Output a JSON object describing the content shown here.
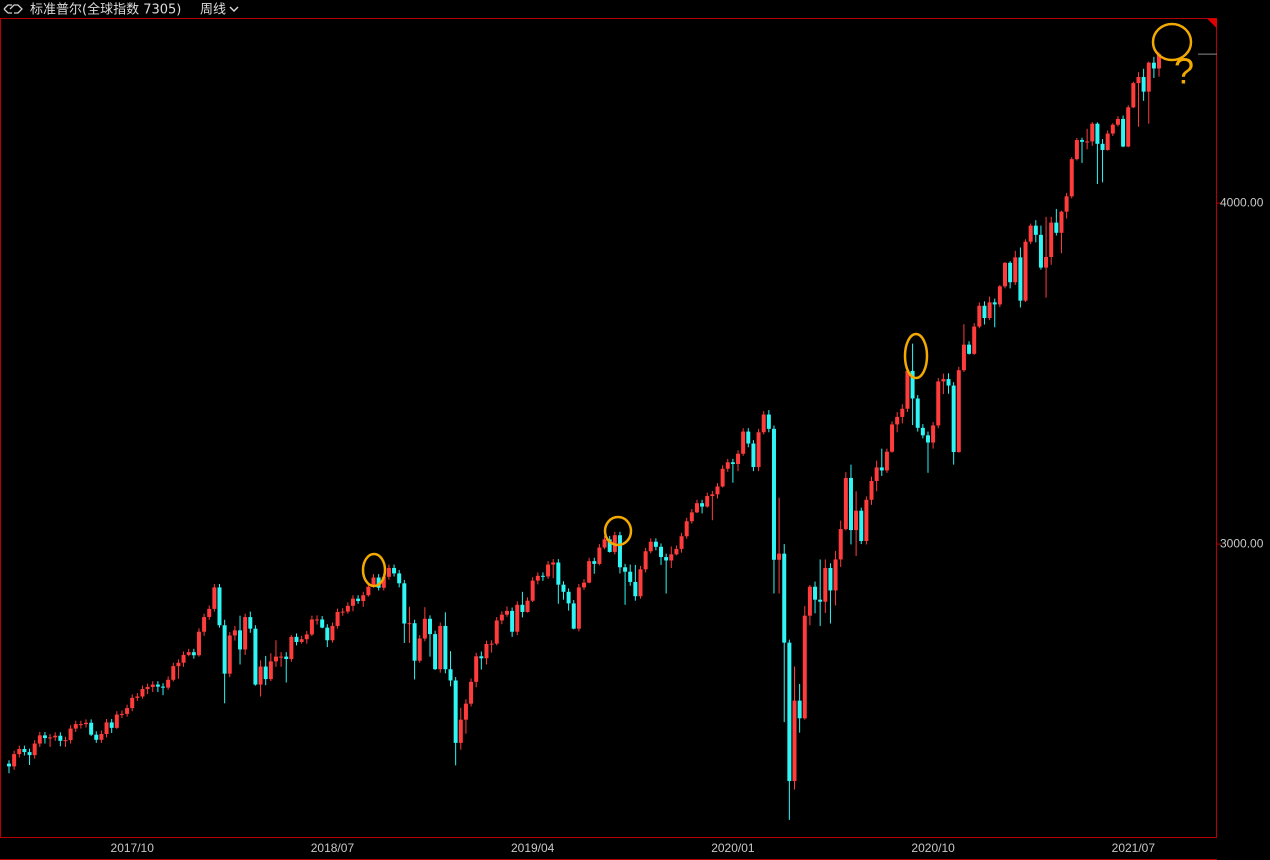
{
  "header": {
    "title": "标准普尔(全球指数 7305)",
    "period": "周线"
  },
  "annotation": "?",
  "chart_data": {
    "type": "candlestick",
    "up_color": "#ff3c3c",
    "down_color": "#2ff5f5",
    "categories": [
      null,
      null,
      null,
      null,
      null,
      null,
      null,
      null,
      null,
      null,
      null,
      null,
      null,
      null,
      null,
      null,
      null,
      null,
      null,
      null,
      null,
      null,
      null,
      null,
      "2017/10",
      null,
      null,
      null,
      null,
      null,
      null,
      null,
      null,
      null,
      null,
      null,
      null,
      null,
      null,
      null,
      null,
      null,
      null,
      null,
      null,
      null,
      null,
      null,
      null,
      null,
      null,
      null,
      null,
      null,
      null,
      null,
      null,
      null,
      null,
      null,
      null,
      null,
      null,
      "2018/07",
      null,
      null,
      null,
      null,
      null,
      null,
      null,
      null,
      null,
      null,
      null,
      null,
      null,
      null,
      null,
      null,
      null,
      null,
      null,
      null,
      null,
      null,
      null,
      null,
      null,
      null,
      null,
      null,
      null,
      null,
      null,
      null,
      null,
      null,
      null,
      null,
      null,
      null,
      "2019/04",
      null,
      null,
      null,
      null,
      null,
      null,
      null,
      null,
      null,
      null,
      null,
      null,
      null,
      null,
      null,
      null,
      null,
      null,
      null,
      null,
      null,
      null,
      null,
      null,
      null,
      null,
      null,
      null,
      null,
      null,
      null,
      null,
      null,
      null,
      null,
      null,
      null,
      null,
      "2020/01",
      null,
      null,
      null,
      null,
      null,
      null,
      null,
      null,
      null,
      null,
      null,
      null,
      null,
      null,
      null,
      null,
      null,
      null,
      null,
      null,
      null,
      null,
      null,
      null,
      null,
      null,
      null,
      null,
      null,
      null,
      null,
      null,
      null,
      null,
      null,
      null,
      null,
      null,
      "2020/10",
      null,
      null,
      null,
      null,
      null,
      null,
      null,
      null,
      null,
      null,
      null,
      null,
      null,
      null,
      null,
      null,
      null,
      null,
      null,
      null,
      null,
      null,
      null,
      null,
      null,
      null,
      null,
      null,
      null,
      null,
      null,
      null,
      null,
      null,
      null,
      null,
      null,
      null,
      "2021/07",
      null,
      null,
      null,
      null,
      null
    ],
    "open": [
      2356,
      2348,
      2384,
      2399,
      2390,
      2381,
      2415,
      2439,
      2431,
      2433,
      2438,
      2423,
      2425,
      2459,
      2472,
      2472,
      2476,
      2441,
      2426,
      2443,
      2477,
      2461,
      2500,
      2502,
      2519,
      2549,
      2553,
      2575,
      2581,
      2588,
      2582,
      2579,
      2602,
      2642,
      2652,
      2675,
      2683,
      2674,
      2743,
      2786,
      2810,
      2873,
      2762,
      2620,
      2732,
      2747,
      2691,
      2786,
      2752,
      2588,
      2641,
      2604,
      2656,
      2670,
      2670,
      2663,
      2728,
      2713,
      2721,
      2735,
      2779,
      2779,
      2755,
      2718,
      2760,
      2801,
      2802,
      2819,
      2840,
      2833,
      2850,
      2875,
      2902,
      2872,
      2904,
      2930,
      2914,
      2885,
      2767,
      2768,
      2658,
      2723,
      2781,
      2736,
      2633,
      2760,
      2633,
      2600,
      2417,
      2485,
      2532,
      2596,
      2671,
      2665,
      2707,
      2708,
      2776,
      2793,
      2804,
      2743,
      2822,
      2801,
      2834,
      2893,
      2907,
      2905,
      2940,
      2946,
      2881,
      2860,
      2826,
      2752,
      2873,
      2887,
      2950,
      2942,
      2990,
      3014,
      2977,
      3026,
      2932,
      2919,
      2889,
      2847,
      2926,
      2979,
      3007,
      2992,
      2962,
      2952,
      2970,
      2986,
      3023,
      3067,
      3093,
      3120,
      3110,
      3141,
      3146,
      3169,
      3221,
      3240,
      3235,
      3265,
      3330,
      3295,
      3226,
      3328,
      3380,
      3338,
      2954,
      2972,
      2711,
      2305,
      2541,
      2489,
      2790,
      2875,
      2837,
      2831,
      2930,
      2864,
      2955,
      3044,
      3194,
      3041,
      3098,
      3009,
      3130,
      3185,
      3225,
      3216,
      3271,
      3351,
      3373,
      3397,
      3508,
      3427,
      3341,
      3319,
      3298,
      3348,
      3477,
      3484,
      3465,
      3270,
      3510,
      3585,
      3558,
      3638,
      3699,
      3663,
      3709,
      3703,
      3756,
      3825,
      3768,
      3841,
      3714,
      3887,
      3934,
      3907,
      3811,
      3842,
      3943,
      3913,
      3975,
      4020,
      4129,
      4185,
      4180,
      4181,
      4233,
      4174,
      4156,
      4204,
      4230,
      4247,
      4166,
      4281,
      4352,
      4370,
      4327,
      4412,
      4395
    ],
    "high": [
      2366,
      2394,
      2409,
      2409,
      2400,
      2425,
      2449,
      2449,
      2443,
      2448,
      2448,
      2435,
      2469,
      2482,
      2482,
      2486,
      2486,
      2451,
      2453,
      2487,
      2487,
      2510,
      2512,
      2529,
      2559,
      2563,
      2585,
      2591,
      2598,
      2598,
      2592,
      2612,
      2652,
      2662,
      2685,
      2693,
      2693,
      2753,
      2796,
      2820,
      2883,
      2883,
      2778,
      2742,
      2760,
      2790,
      2796,
      2802,
      2762,
      2659,
      2672,
      2680,
      2718,
      2683,
      2683,
      2733,
      2738,
      2731,
      2745,
      2790,
      2791,
      2789,
      2765,
      2770,
      2811,
      2812,
      2829,
      2850,
      2850,
      2860,
      2885,
      2912,
      2912,
      2914,
      2940,
      2940,
      2924,
      2895,
      2816,
      2778,
      2733,
      2815,
      2791,
      2746,
      2770,
      2800,
      2686,
      2610,
      2520,
      2545,
      2606,
      2681,
      2685,
      2717,
      2718,
      2786,
      2803,
      2817,
      2814,
      2832,
      2860,
      2844,
      2903,
      2917,
      2917,
      2950,
      2956,
      2956,
      2891,
      2870,
      2836,
      2883,
      2897,
      2960,
      2960,
      3000,
      3024,
      3024,
      3036,
      3036,
      2942,
      2940,
      2939,
      2936,
      2989,
      3017,
      3017,
      3002,
      2972,
      2993,
      2996,
      3033,
      3077,
      3103,
      3130,
      3130,
      3151,
      3156,
      3179,
      3231,
      3250,
      3250,
      3275,
      3340,
      3340,
      3305,
      3338,
      3390,
      3393,
      3348,
      3136,
      3000,
      2720,
      2641,
      2590,
      2818,
      2880,
      2890,
      2955,
      2955,
      2944,
      2980,
      3069,
      3211,
      3233,
      3155,
      3107,
      3140,
      3198,
      3245,
      3280,
      3280,
      3360,
      3387,
      3410,
      3514,
      3588,
      3437,
      3352,
      3330,
      3358,
      3487,
      3500,
      3501,
      3475,
      3520,
      3645,
      3595,
      3648,
      3709,
      3712,
      3726,
      3720,
      3760,
      3827,
      3830,
      3860,
      3870,
      3894,
      3940,
      3950,
      3934,
      3960,
      3960,
      3983,
      3978,
      4030,
      4135,
      4191,
      4192,
      4218,
      4238,
      4237,
      4188,
      4213,
      4234,
      4255,
      4257,
      4287,
      4356,
      4384,
      4394,
      4415,
      4429,
      4442
    ],
    "low": [
      2328,
      2338,
      2374,
      2380,
      2352,
      2371,
      2405,
      2415,
      2405,
      2423,
      2407,
      2405,
      2415,
      2449,
      2459,
      2462,
      2437,
      2417,
      2417,
      2433,
      2446,
      2458,
      2490,
      2494,
      2510,
      2540,
      2547,
      2560,
      2566,
      2566,
      2557,
      2573,
      2597,
      2605,
      2640,
      2671,
      2664,
      2670,
      2731,
      2778,
      2802,
      2755,
      2533,
      2610,
      2717,
      2647,
      2675,
      2740,
      2585,
      2553,
      2586,
      2598,
      2640,
      2640,
      2594,
      2655,
      2703,
      2708,
      2708,
      2730,
      2764,
      2753,
      2698,
      2711,
      2752,
      2790,
      2796,
      2803,
      2825,
      2816,
      2846,
      2872,
      2864,
      2864,
      2896,
      2905,
      2873,
      2710,
      2710,
      2603,
      2652,
      2715,
      2670,
      2631,
      2623,
      2621,
      2583,
      2351,
      2397,
      2444,
      2524,
      2580,
      2632,
      2647,
      2682,
      2703,
      2765,
      2787,
      2728,
      2733,
      2785,
      2799,
      2830,
      2882,
      2892,
      2898,
      2900,
      2825,
      2837,
      2805,
      2750,
      2744,
      2866,
      2885,
      2913,
      2938,
      2985,
      2975,
      2970,
      2914,
      2822,
      2878,
      2834,
      2840,
      2917,
      2973,
      2982,
      2939,
      2855,
      2930,
      2967,
      2975,
      3016,
      3060,
      3091,
      3090,
      3107,
      3070,
      3134,
      3166,
      3212,
      3180,
      3214,
      3259,
      3284,
      3214,
      3214,
      3322,
      3328,
      2855,
      2855,
      2478,
      2191,
      2280,
      2447,
      2485,
      2762,
      2797,
      2760,
      2798,
      2767,
      2820,
      2933,
      3040,
      2999,
      2965,
      3000,
      2999,
      3115,
      3155,
      3200,
      3209,
      3268,
      3328,
      3354,
      3387,
      3349,
      3330,
      3310,
      3209,
      3280,
      3340,
      3440,
      3441,
      3233,
      3268,
      3505,
      3556,
      3555,
      3633,
      3644,
      3657,
      3636,
      3695,
      3750,
      3750,
      3760,
      3694,
      3710,
      3880,
      3885,
      3805,
      3723,
      3819,
      3905,
      3853,
      3955,
      4014,
      4125,
      4118,
      4158,
      4168,
      4056,
      4061,
      4154,
      4197,
      4225,
      4164,
      4164,
      4279,
      4224,
      4300,
      4233,
      4367,
      4371
    ],
    "close": [
      2348,
      2384,
      2399,
      2390,
      2381,
      2415,
      2439,
      2431,
      2433,
      2438,
      2423,
      2425,
      2459,
      2472,
      2472,
      2476,
      2441,
      2426,
      2443,
      2477,
      2461,
      2500,
      2502,
      2519,
      2549,
      2553,
      2575,
      2581,
      2588,
      2582,
      2579,
      2602,
      2642,
      2652,
      2675,
      2683,
      2674,
      2743,
      2786,
      2810,
      2873,
      2762,
      2620,
      2732,
      2747,
      2691,
      2786,
      2752,
      2588,
      2641,
      2604,
      2656,
      2670,
      2670,
      2663,
      2728,
      2713,
      2721,
      2735,
      2779,
      2779,
      2755,
      2718,
      2760,
      2801,
      2802,
      2819,
      2840,
      2833,
      2850,
      2875,
      2902,
      2872,
      2904,
      2930,
      2914,
      2885,
      2767,
      2768,
      2658,
      2723,
      2781,
      2736,
      2633,
      2760,
      2633,
      2600,
      2417,
      2485,
      2532,
      2596,
      2671,
      2665,
      2707,
      2708,
      2776,
      2793,
      2804,
      2743,
      2822,
      2801,
      2834,
      2893,
      2907,
      2905,
      2940,
      2946,
      2881,
      2860,
      2826,
      2752,
      2873,
      2887,
      2950,
      2942,
      2990,
      3014,
      2977,
      3026,
      2932,
      2919,
      2889,
      2847,
      2926,
      2979,
      3007,
      2992,
      2962,
      2952,
      2970,
      2986,
      3023,
      3067,
      3093,
      3120,
      3110,
      3141,
      3146,
      3169,
      3221,
      3240,
      3235,
      3265,
      3330,
      3295,
      3226,
      3328,
      3380,
      3338,
      2954,
      2972,
      2711,
      2305,
      2541,
      2489,
      2790,
      2875,
      2837,
      2831,
      2930,
      2864,
      2955,
      3044,
      3194,
      3041,
      3098,
      3009,
      3130,
      3185,
      3225,
      3216,
      3271,
      3351,
      3373,
      3397,
      3508,
      3427,
      3341,
      3319,
      3298,
      3348,
      3477,
      3484,
      3465,
      3270,
      3510,
      3585,
      3558,
      3638,
      3699,
      3663,
      3709,
      3703,
      3756,
      3825,
      3768,
      3841,
      3714,
      3887,
      3934,
      3907,
      3811,
      3842,
      3943,
      3913,
      3975,
      4020,
      4129,
      4185,
      4180,
      4181,
      4233,
      4174,
      4156,
      4204,
      4230,
      4247,
      4166,
      4281,
      4352,
      4370,
      4327,
      4412,
      4395,
      4437
    ],
    "ylim": [
      2138,
      4543
    ],
    "yticks": [
      {
        "value": 3000,
        "label": "3000.00"
      },
      {
        "value": 4000,
        "label": "4000.00"
      }
    ]
  }
}
